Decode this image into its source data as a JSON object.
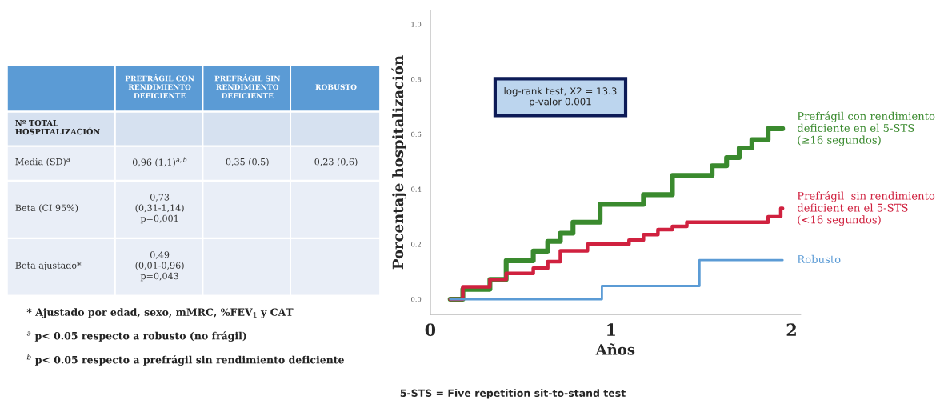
{
  "chart_data": [
    {
      "type": "other",
      "categories": [
        null,
        "PREFRÁGIL CON\nRENDIMIENTO\nDEFICIENTE",
        "PREFRÁGIL SIN\nRENDIMIENTO\nDEFICIENTE",
        "ROBUSTO"
      ],
      "y_categories": [
        "Nº TOTAL\nHOSPITALIZACIÓN",
        "Media (SD)$^{a}$",
        "Beta (CI 95%)",
        "Beta ajustado*"
      ],
      "cell_labels": [
        [
          null,
          null,
          null
        ],
        [
          "0,96 (1,1)$^{a,b}$",
          "0,35 (0.5)",
          "0,23 (0,6)"
        ],
        [
          "0,73\n(0,31-1,14)\np=0,001",
          null,
          null
        ],
        [
          "0,49\n(0,01-0,96)\np=0,043",
          null,
          null
        ]
      ],
      "annotations": [
        "* Ajustado por edad, sexo, mMRC, %FEV$_{1}$ y CAT",
        "$^{a}$ p< 0.05 respecto a robusto (no frágil)",
        "$^{b}$ p< 0.05 respecto a prefrágil sin rendimiento deficiente"
      ]
    },
    {
      "type": "step",
      "xlabel": "Años",
      "ylabel": "Porcentaje hospitalización",
      "xlim": [
        0,
        2.05
      ],
      "xticks": [
        0,
        1,
        2
      ],
      "ylim": [
        -0.055,
        1.05
      ],
      "yticks": [
        {
          "value": 0,
          "label": "0.0"
        },
        {
          "value": 0.2,
          "label": "0.2"
        },
        {
          "value": 0.4,
          "label": "0.4"
        },
        {
          "value": 0.6,
          "label": "0.6"
        },
        {
          "value": 0.8,
          "label": "0.8"
        },
        {
          "value": 1.0,
          "label": "1.0"
        }
      ],
      "marker": "none",
      "line_style": "solid",
      "grid": false,
      "series": [
        {
          "name": "Prefrágil con rendimiento\ndeficiente en el 5-STS\n(≥16 segundos)",
          "color": "#3a8a2e",
          "x": [
            0.11,
            0.18,
            0.33,
            0.42,
            0.57,
            0.65,
            0.72,
            0.79,
            0.94,
            1.18,
            1.34,
            1.56,
            1.64,
            1.71,
            1.78,
            1.87,
            1.95
          ],
          "values": [
            0,
            0.036,
            0.072,
            0.14,
            0.175,
            0.21,
            0.24,
            0.28,
            0.345,
            0.38,
            0.45,
            0.485,
            0.515,
            0.55,
            0.58,
            0.62,
            0.62
          ]
        },
        {
          "name": "Prefrágil  sin rendimiento\ndeficient en el 5-STS\n(<16 segundos)",
          "color": "#d0213f",
          "x": [
            0.11,
            0.18,
            0.33,
            0.42,
            0.57,
            0.65,
            0.72,
            0.87,
            1.1,
            1.18,
            1.26,
            1.34,
            1.42,
            1.87,
            1.94,
            1.95
          ],
          "values": [
            0,
            0.045,
            0.072,
            0.094,
            0.113,
            0.137,
            0.176,
            0.2,
            0.215,
            0.235,
            0.253,
            0.265,
            0.28,
            0.3,
            0.33,
            0.33
          ]
        },
        {
          "name": "Robusto",
          "color": "#5b9bd5",
          "x": [
            0.11,
            0.95,
            1.49,
            1.95
          ],
          "values": [
            0,
            0.048,
            0.142,
            0.142
          ]
        }
      ],
      "annotations": [
        "log-rank test, X2 = 13.3\np-valor 0.001",
        "5-STS = Five repetition sit-to-stand test"
      ]
    }
  ]
}
